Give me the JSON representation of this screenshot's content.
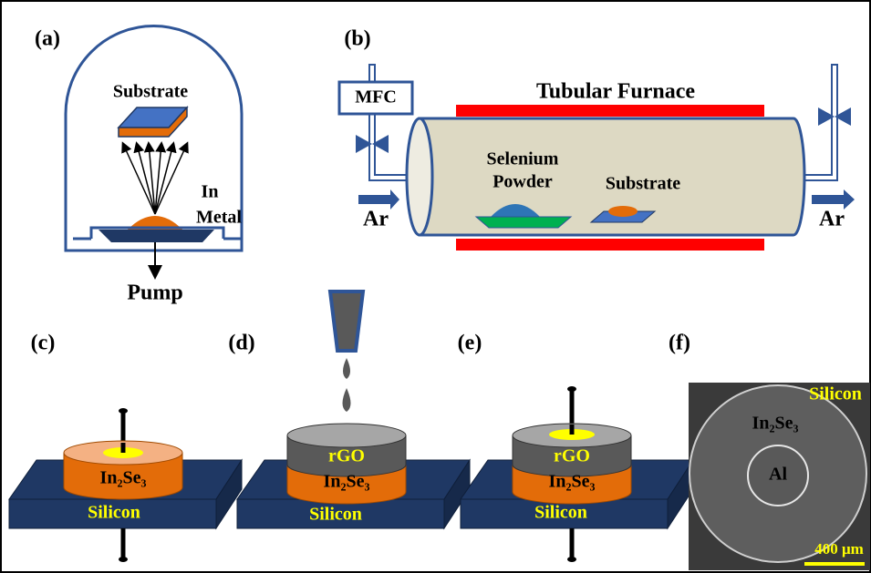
{
  "panels": {
    "a": {
      "label": "(a)",
      "substrate": "Substrate",
      "source_line1": "In",
      "source_line2": "Metal",
      "pump": "Pump"
    },
    "b": {
      "label": "(b)",
      "mfc": "MFC",
      "furnace": "Tubular Furnace",
      "powder_line1": "Selenium",
      "powder_line2": "Powder",
      "substrate": "Substrate",
      "gas_in": "Ar",
      "gas_out": "Ar"
    },
    "c": {
      "label": "(c)",
      "film": "In₂Se₃",
      "wafer": "Silicon"
    },
    "d": {
      "label": "(d)",
      "top_layer": "rGO",
      "film": "In₂Se₃",
      "wafer": "Silicon"
    },
    "e": {
      "label": "(e)",
      "top_layer": "rGO",
      "film": "In₂Se₃",
      "wafer": "Silicon"
    },
    "f": {
      "label": "(f)",
      "wafer": "Silicon",
      "film": "In₂Se₃",
      "electrode": "Al",
      "scale_bar": "400 μm"
    }
  }
}
